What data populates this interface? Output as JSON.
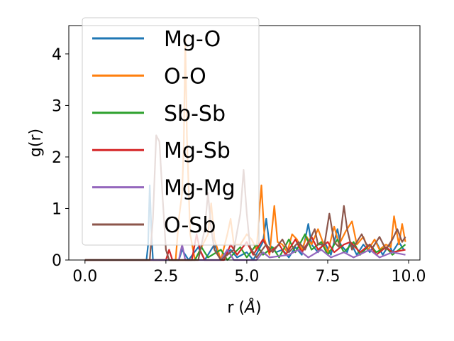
{
  "chart_data": {
    "type": "line",
    "title": "",
    "xlabel_main": "r (",
    "xlabel_symbol": "Å",
    "xlabel_close": ")",
    "ylabel": "g(r)",
    "xlim": [
      -0.5,
      10.35
    ],
    "ylim": [
      0,
      4.55
    ],
    "x_ticks": [
      0.0,
      2.5,
      5.0,
      7.5,
      10.0
    ],
    "x_tick_labels": [
      "0.0",
      "2.5",
      "5.0",
      "7.5",
      "10.0"
    ],
    "y_ticks": [
      0,
      1,
      2,
      3,
      4
    ],
    "y_tick_labels": [
      "0",
      "1",
      "2",
      "3",
      "4"
    ],
    "grid": false,
    "legend_position": "upper-left",
    "series": [
      {
        "name": "Mg-O",
        "color": "#1f77b4",
        "points": [
          [
            0.0,
            0
          ],
          [
            1.9,
            0
          ],
          [
            1.95,
            0.3
          ],
          [
            2.0,
            1.45
          ],
          [
            2.05,
            0.6
          ],
          [
            2.1,
            0
          ],
          [
            2.9,
            0
          ],
          [
            3.0,
            0.2
          ],
          [
            3.2,
            0
          ],
          [
            3.5,
            0.25
          ],
          [
            3.7,
            0
          ],
          [
            4.0,
            0.3
          ],
          [
            4.2,
            0
          ],
          [
            4.5,
            0.2
          ],
          [
            4.7,
            0.05
          ],
          [
            5.0,
            0.15
          ],
          [
            5.2,
            0
          ],
          [
            5.5,
            0.35
          ],
          [
            5.6,
            0.8
          ],
          [
            5.7,
            0.3
          ],
          [
            5.9,
            0.15
          ],
          [
            6.1,
            0.2
          ],
          [
            6.3,
            0.05
          ],
          [
            6.5,
            0.25
          ],
          [
            6.7,
            0.1
          ],
          [
            6.9,
            0.7
          ],
          [
            7.0,
            0.3
          ],
          [
            7.2,
            0.15
          ],
          [
            7.4,
            0.35
          ],
          [
            7.6,
            0.1
          ],
          [
            7.8,
            0.6
          ],
          [
            7.9,
            0.3
          ],
          [
            8.1,
            0.15
          ],
          [
            8.2,
            0.35
          ],
          [
            8.4,
            0.1
          ],
          [
            8.6,
            0.3
          ],
          [
            8.8,
            0.15
          ],
          [
            9.0,
            0.35
          ],
          [
            9.2,
            0.1
          ],
          [
            9.4,
            0.3
          ],
          [
            9.5,
            0.15
          ],
          [
            9.7,
            0.35
          ],
          [
            9.85,
            0.2
          ]
        ]
      },
      {
        "name": "O-O",
        "color": "#ff7f0e",
        "points": [
          [
            0.0,
            0
          ],
          [
            2.8,
            0
          ],
          [
            2.9,
            0.8
          ],
          [
            3.0,
            1.3
          ],
          [
            3.05,
            2.2
          ],
          [
            3.1,
            4.3
          ],
          [
            3.15,
            2.4
          ],
          [
            3.25,
            0.5
          ],
          [
            3.4,
            0
          ],
          [
            3.8,
            0.5
          ],
          [
            3.9,
            1.1
          ],
          [
            4.0,
            0.4
          ],
          [
            4.2,
            0
          ],
          [
            4.4,
            0.5
          ],
          [
            4.5,
            0.8
          ],
          [
            4.6,
            0.3
          ],
          [
            4.8,
            0.3
          ],
          [
            5.0,
            0.5
          ],
          [
            5.15,
            0.4
          ],
          [
            5.3,
            0.2
          ],
          [
            5.45,
            1.45
          ],
          [
            5.55,
            0.4
          ],
          [
            5.7,
            0.1
          ],
          [
            5.85,
            1.05
          ],
          [
            5.95,
            0.35
          ],
          [
            6.1,
            0.3
          ],
          [
            6.25,
            0.15
          ],
          [
            6.4,
            0.5
          ],
          [
            6.55,
            0.4
          ],
          [
            6.7,
            0.2
          ],
          [
            6.85,
            0.45
          ],
          [
            7.0,
            0.3
          ],
          [
            7.2,
            0.6
          ],
          [
            7.35,
            0.35
          ],
          [
            7.5,
            0.15
          ],
          [
            7.7,
            0.65
          ],
          [
            7.85,
            0.3
          ],
          [
            8.05,
            0.55
          ],
          [
            8.25,
            0.75
          ],
          [
            8.4,
            0.3
          ],
          [
            8.6,
            0.45
          ],
          [
            8.75,
            0.2
          ],
          [
            8.95,
            0.4
          ],
          [
            9.1,
            0.2
          ],
          [
            9.3,
            0.3
          ],
          [
            9.45,
            0.25
          ],
          [
            9.55,
            0.85
          ],
          [
            9.7,
            0.3
          ],
          [
            9.8,
            0.7
          ],
          [
            9.9,
            0.35
          ]
        ]
      },
      {
        "name": "Sb-Sb",
        "color": "#2ca02c",
        "points": [
          [
            0.0,
            0
          ],
          [
            3.4,
            0
          ],
          [
            3.6,
            0.25
          ],
          [
            3.8,
            0.05
          ],
          [
            4.2,
            0.2
          ],
          [
            4.4,
            0
          ],
          [
            4.8,
            0.25
          ],
          [
            5.0,
            0.05
          ],
          [
            5.3,
            0.3
          ],
          [
            5.5,
            0.1
          ],
          [
            5.8,
            0.25
          ],
          [
            6.0,
            0.05
          ],
          [
            6.3,
            0.4
          ],
          [
            6.5,
            0.15
          ],
          [
            6.8,
            0.5
          ],
          [
            7.0,
            0.2
          ],
          [
            7.3,
            0.35
          ],
          [
            7.5,
            0.1
          ],
          [
            7.8,
            0.4
          ],
          [
            8.0,
            0.15
          ],
          [
            8.3,
            0.35
          ],
          [
            8.5,
            0.1
          ],
          [
            8.8,
            0.3
          ],
          [
            9.0,
            0.15
          ],
          [
            9.3,
            0.25
          ],
          [
            9.5,
            0.1
          ],
          [
            9.9,
            0.3
          ]
        ]
      },
      {
        "name": "Mg-Sb",
        "color": "#d62728",
        "points": [
          [
            0.0,
            0
          ],
          [
            2.5,
            0
          ],
          [
            2.6,
            0.2
          ],
          [
            2.7,
            0
          ],
          [
            3.3,
            0
          ],
          [
            3.45,
            0.5
          ],
          [
            3.55,
            0.2
          ],
          [
            3.7,
            0
          ],
          [
            4.3,
            0
          ],
          [
            4.5,
            0.3
          ],
          [
            4.7,
            0.1
          ],
          [
            5.0,
            0.35
          ],
          [
            5.2,
            0.1
          ],
          [
            5.5,
            0.4
          ],
          [
            5.7,
            0.15
          ],
          [
            6.0,
            0.3
          ],
          [
            6.2,
            0.1
          ],
          [
            6.5,
            0.4
          ],
          [
            6.7,
            0.15
          ],
          [
            7.0,
            0.45
          ],
          [
            7.2,
            0.2
          ],
          [
            7.5,
            0.35
          ],
          [
            7.7,
            0.15
          ],
          [
            8.0,
            0.3
          ],
          [
            8.2,
            0.35
          ],
          [
            8.5,
            0.15
          ],
          [
            8.8,
            0.3
          ],
          [
            9.0,
            0.1
          ],
          [
            9.3,
            0.25
          ],
          [
            9.5,
            0.15
          ],
          [
            9.9,
            0.2
          ]
        ]
      },
      {
        "name": "Mg-Mg",
        "color": "#9467bd",
        "points": [
          [
            0.0,
            0
          ],
          [
            2.9,
            0
          ],
          [
            3.0,
            0.3
          ],
          [
            3.1,
            0
          ],
          [
            4.2,
            0
          ],
          [
            4.4,
            0.2
          ],
          [
            4.6,
            0
          ],
          [
            5.3,
            0
          ],
          [
            5.5,
            0.15
          ],
          [
            5.7,
            0.05
          ],
          [
            6.3,
            0.1
          ],
          [
            6.6,
            0.2
          ],
          [
            6.9,
            0.05
          ],
          [
            7.3,
            0.2
          ],
          [
            7.6,
            0.05
          ],
          [
            8.0,
            0.15
          ],
          [
            8.3,
            0.05
          ],
          [
            8.8,
            0.2
          ],
          [
            9.1,
            0.05
          ],
          [
            9.5,
            0.15
          ],
          [
            9.9,
            0.1
          ]
        ]
      },
      {
        "name": "O-Sb",
        "color": "#8c564b",
        "points": [
          [
            0.0,
            0
          ],
          [
            2.0,
            0
          ],
          [
            2.1,
            0.8
          ],
          [
            2.2,
            2.42
          ],
          [
            2.3,
            2.3
          ],
          [
            2.4,
            1.2
          ],
          [
            2.5,
            0.2
          ],
          [
            2.6,
            0
          ],
          [
            3.5,
            0
          ],
          [
            3.7,
            0.6
          ],
          [
            3.8,
            1.3
          ],
          [
            3.9,
            0.6
          ],
          [
            4.0,
            0.2
          ],
          [
            4.2,
            0
          ],
          [
            4.6,
            0.2
          ],
          [
            4.8,
            0.9
          ],
          [
            4.9,
            1.75
          ],
          [
            5.0,
            0.9
          ],
          [
            5.1,
            0.25
          ],
          [
            5.3,
            0.05
          ],
          [
            5.6,
            0.3
          ],
          [
            5.8,
            0.15
          ],
          [
            6.1,
            0.4
          ],
          [
            6.3,
            0.15
          ],
          [
            6.6,
            0.35
          ],
          [
            6.8,
            0.2
          ],
          [
            7.1,
            0.6
          ],
          [
            7.2,
            0.3
          ],
          [
            7.4,
            0.3
          ],
          [
            7.55,
            0.9
          ],
          [
            7.7,
            0.35
          ],
          [
            7.85,
            0.25
          ],
          [
            8.0,
            1.05
          ],
          [
            8.1,
            0.6
          ],
          [
            8.25,
            0.2
          ],
          [
            8.4,
            0.35
          ],
          [
            8.55,
            0.5
          ],
          [
            8.7,
            0.3
          ],
          [
            8.9,
            0.25
          ],
          [
            9.1,
            0.45
          ],
          [
            9.3,
            0.2
          ],
          [
            9.5,
            0.4
          ],
          [
            9.65,
            0.6
          ],
          [
            9.8,
            0.35
          ],
          [
            9.9,
            0.45
          ]
        ]
      }
    ]
  }
}
